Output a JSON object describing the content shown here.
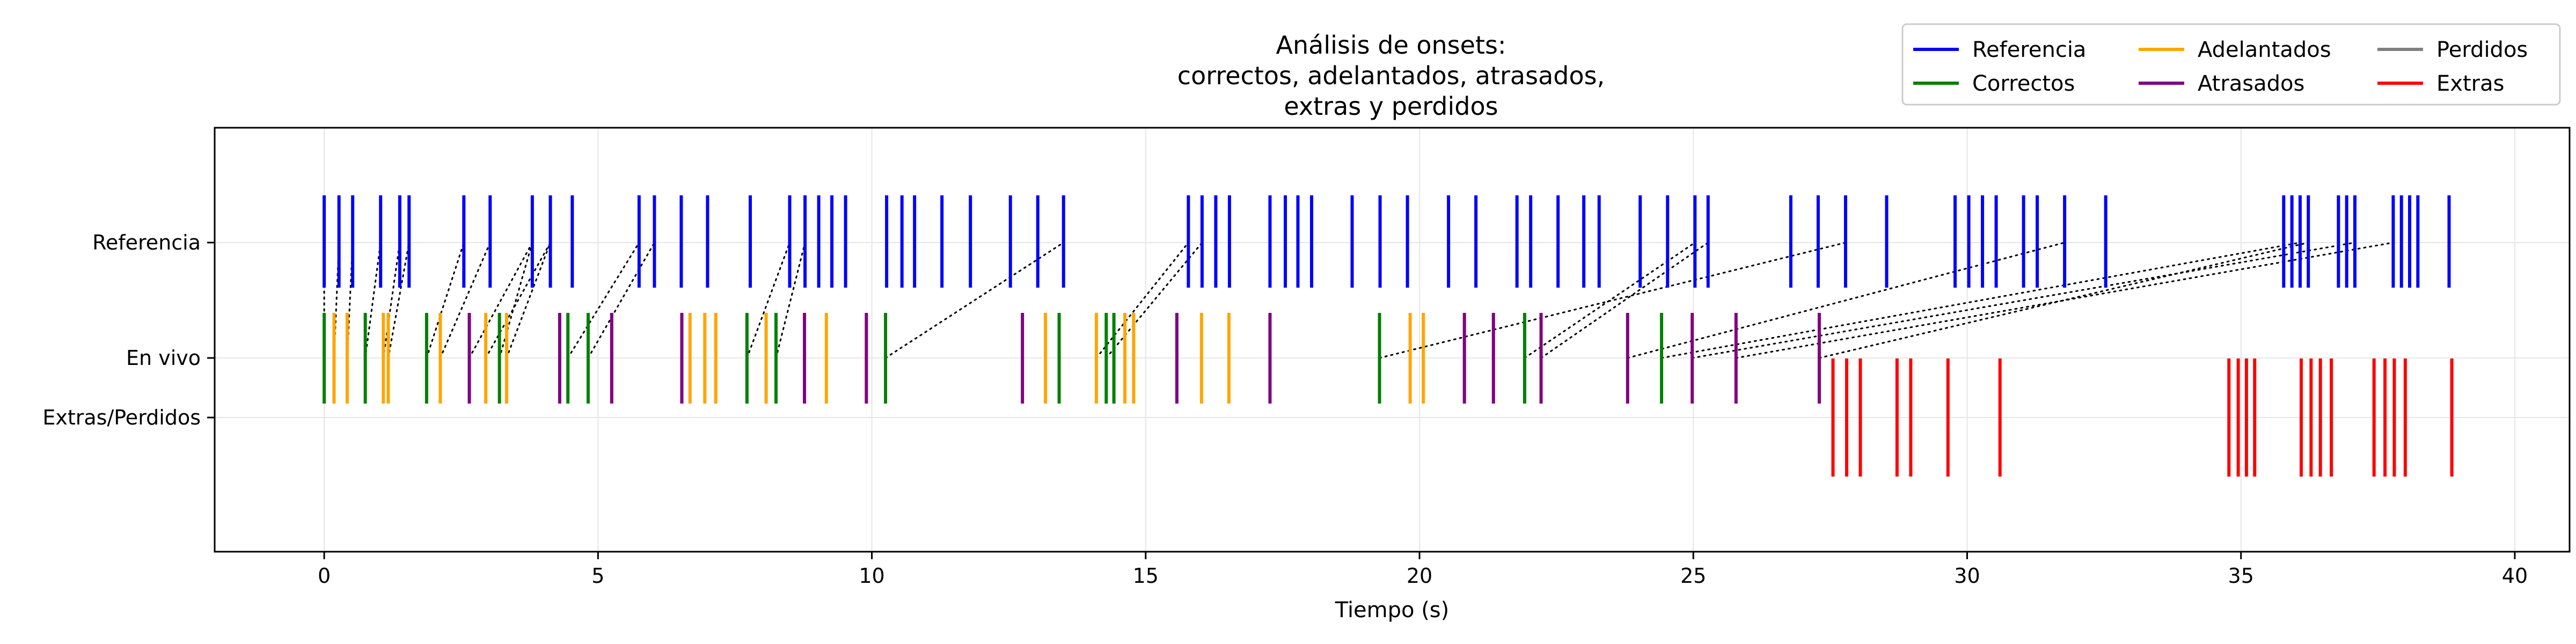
{
  "chart_data": {
    "type": "event-raster",
    "title_lines": [
      "Análisis de onsets:",
      "correctos, adelantados, atrasados,",
      "extras y perdidos"
    ],
    "xlabel": "Tiempo (s)",
    "ylabel": "",
    "xlim": [
      -2,
      41
    ],
    "x_ticks": [
      0,
      5,
      10,
      15,
      20,
      25,
      30,
      35,
      40
    ],
    "x_tick_labels": [
      "0",
      "5",
      "10",
      "15",
      "20",
      "25",
      "30",
      "35",
      "40"
    ],
    "grid": true,
    "legend_position": "top-right",
    "rows": [
      {
        "key": "ref",
        "label": "Referencia"
      },
      {
        "key": "live",
        "label": "En vivo"
      },
      {
        "key": "extra_missed",
        "label": "Extras/Perdidos"
      }
    ],
    "legend": [
      {
        "name": "Referencia",
        "color": "#0000ff"
      },
      {
        "name": "Correctos",
        "color": "#008000"
      },
      {
        "name": "Adelantados",
        "color": "#ffa500"
      },
      {
        "name": "Atrasados",
        "color": "#800080"
      },
      {
        "name": "Perdidos",
        "color": "#808080"
      },
      {
        "name": "Extras",
        "color": "#ff0000"
      }
    ],
    "series": [
      {
        "name": "Referencia",
        "row": "ref",
        "color": "#0000ff",
        "values": [
          0.0,
          0.27,
          0.52,
          1.03,
          1.38,
          1.55,
          2.55,
          3.03,
          3.8,
          4.13,
          4.53,
          5.75,
          6.03,
          6.52,
          7.0,
          7.78,
          8.5,
          8.78,
          9.03,
          9.27,
          9.52,
          10.27,
          10.55,
          10.78,
          11.28,
          11.8,
          12.53,
          13.03,
          13.5,
          15.78,
          16.03,
          16.28,
          16.53,
          17.27,
          17.55,
          17.78,
          18.03,
          18.77,
          19.28,
          19.78,
          20.53,
          21.03,
          21.78,
          22.03,
          22.53,
          23.0,
          23.28,
          24.03,
          24.53,
          25.03,
          25.27,
          26.78,
          27.28,
          27.78,
          28.53,
          29.78,
          30.03,
          30.28,
          30.53,
          31.03,
          31.28,
          31.78,
          32.53,
          35.78,
          35.93,
          36.08,
          36.23,
          36.78,
          36.93,
          37.08,
          37.78,
          37.93,
          38.08,
          38.23,
          38.8
        ]
      },
      {
        "name": "Correctos",
        "row": "live",
        "color": "#008000",
        "values": [
          0.0,
          0.75,
          1.87,
          3.2,
          4.45,
          4.82,
          7.72,
          8.25,
          10.25,
          13.42,
          14.28,
          14.42,
          19.27,
          21.92,
          24.42
        ]
      },
      {
        "name": "Adelantados",
        "row": "live",
        "color": "#ffa500",
        "values": [
          0.18,
          0.42,
          1.08,
          1.17,
          2.12,
          2.95,
          3.33,
          6.68,
          6.95,
          7.15,
          8.07,
          9.17,
          13.17,
          14.1,
          14.62,
          14.78,
          16.02,
          16.52,
          19.83,
          20.07
        ]
      },
      {
        "name": "Atrasados",
        "row": "live",
        "color": "#800080",
        "values": [
          2.65,
          4.3,
          5.25,
          6.53,
          8.77,
          9.9,
          12.75,
          15.57,
          17.27,
          20.82,
          21.35,
          22.22,
          23.8,
          24.98,
          25.78,
          27.3
        ]
      },
      {
        "name": "Extras",
        "row": "extra_missed",
        "color": "#ff0000",
        "values": [
          27.55,
          27.8,
          28.05,
          28.72,
          28.97,
          29.65,
          30.6,
          34.78,
          34.95,
          35.1,
          35.25,
          36.1,
          36.28,
          36.45,
          36.65,
          37.43,
          37.63,
          37.8,
          38.0,
          38.85
        ]
      },
      {
        "name": "Perdidos",
        "row": "extra_missed",
        "color": "#808080",
        "values": []
      }
    ],
    "matches": [
      [
        0.0,
        0.0
      ],
      [
        0.18,
        0.27
      ],
      [
        0.42,
        0.52
      ],
      [
        0.75,
        1.03
      ],
      [
        1.08,
        1.38
      ],
      [
        1.17,
        1.55
      ],
      [
        1.87,
        2.55
      ],
      [
        2.12,
        3.03
      ],
      [
        2.65,
        3.8
      ],
      [
        2.95,
        4.13
      ],
      [
        3.2,
        3.8
      ],
      [
        3.33,
        4.13
      ],
      [
        4.45,
        5.75
      ],
      [
        4.82,
        6.03
      ],
      [
        7.72,
        8.5
      ],
      [
        8.25,
        8.78
      ],
      [
        10.25,
        13.5
      ],
      [
        14.1,
        15.78
      ],
      [
        14.28,
        16.03
      ],
      [
        19.27,
        27.78
      ],
      [
        21.92,
        25.03
      ],
      [
        22.22,
        25.27
      ],
      [
        23.8,
        31.78
      ],
      [
        24.42,
        36.08
      ],
      [
        24.98,
        37.08
      ],
      [
        25.78,
        37.78
      ],
      [
        27.3,
        36.23
      ]
    ]
  }
}
